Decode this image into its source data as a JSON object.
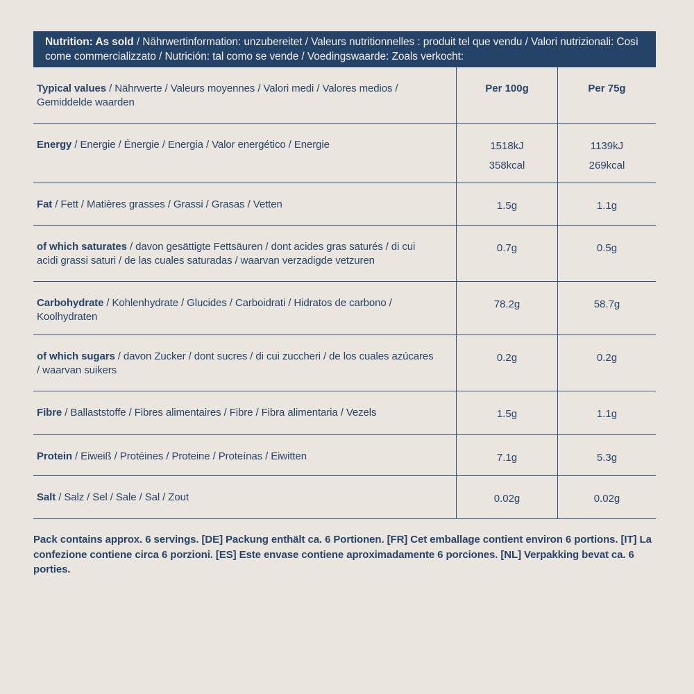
{
  "colors": {
    "page_background": "#eae6df",
    "bar_background": "#254268",
    "bar_text": "#f3f0ea",
    "body_text": "#28446a",
    "grid_line": "#32507c"
  },
  "header": {
    "bold": "Nutrition: As sold",
    "rest": " / Nährwertinformation: unzubereitet / Valeurs nutritionnelles : produit tel que vendu / Valori nutrizionali: Così come commercializzato / Nutrición: tal como se vende / Voedingswaarde: Zoals verkocht:"
  },
  "table": {
    "column_headers": [
      "Per 100g",
      "Per 75g"
    ],
    "typical_values_row": {
      "bold": "Typical values",
      "rest": " / Nährwerte / Valeurs moyennes / Valori medi / Valores medios / Gemiddelde waarden"
    },
    "rows": [
      {
        "bold": "Energy",
        "rest": " / Energie / Énergie / Energia / Valor energético / Energie",
        "per_100g": "1518kJ\n358kcal",
        "per_75g": "1139kJ\n269kcal"
      },
      {
        "bold": "Fat",
        "rest": " / Fett / Matières grasses / Grassi / Grasas / Vetten",
        "per_100g": "1.5g",
        "per_75g": "1.1g"
      },
      {
        "bold": "of which saturates",
        "rest": " / davon gesättigte Fettsäuren / dont acides gras saturés / di cui acidi grassi saturi / de las cuales saturadas / waarvan verzadigde vetzuren",
        "per_100g": "0.7g",
        "per_75g": "0.5g"
      },
      {
        "bold": "Carbohydrate",
        "rest": " / Kohlenhydrate / Glucides / Carboidrati / Hidratos de carbono / Koolhydraten",
        "per_100g": "78.2g",
        "per_75g": "58.7g"
      },
      {
        "bold": "of which sugars",
        "rest": " / davon Zucker / dont sucres / di cui zuccheri / de los cuales azúcares / waarvan suikers",
        "per_100g": "0.2g",
        "per_75g": "0.2g"
      },
      {
        "bold": "Fibre",
        "rest": " / Ballaststoffe / Fibres alimentaires / Fibre / Fibra alimentaria / Vezels",
        "per_100g": "1.5g",
        "per_75g": "1.1g"
      },
      {
        "bold": "Protein",
        "rest": " / Eiweiß / Protéines / Proteine / Proteínas / Eiwitten",
        "per_100g": "7.1g",
        "per_75g": "5.3g"
      },
      {
        "bold": "Salt",
        "rest": " / Salz / Sel / Sale / Sal / Zout",
        "per_100g": "0.02g",
        "per_75g": "0.02g"
      }
    ]
  },
  "footer": {
    "text": "Pack contains approx. 6 servings. [DE] Packung enthält ca. 6 Portionen. [FR] Cet emballage contient environ 6 portions. [IT] La confezione contiene circa 6 porzioni. [ES] Este envase contiene aproximadamente 6 porciones. [NL] Verpakking bevat ca. 6 porties."
  }
}
